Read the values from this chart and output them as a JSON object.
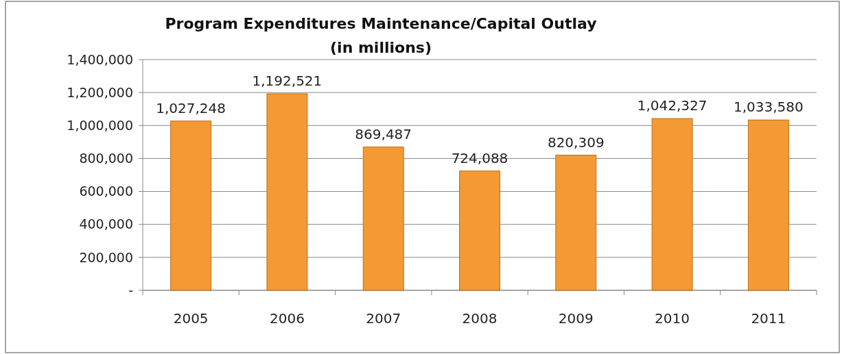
{
  "chart_data": {
    "type": "bar",
    "title": "Program Expenditures Maintenance/Capital Outlay",
    "subtitle": "(in millions)",
    "categories": [
      "2005",
      "2006",
      "2007",
      "2008",
      "2009",
      "2010",
      "2011"
    ],
    "values": [
      1027248,
      1192521,
      869487,
      724088,
      820309,
      1042327,
      1033580
    ],
    "color": "#f39a34",
    "ylim": [
      0,
      1400000
    ],
    "yticks": [
      {
        "value": 0,
        "label": "-"
      },
      {
        "value": 200000,
        "label": "200,000"
      },
      {
        "value": 400000,
        "label": "400,000"
      },
      {
        "value": 600000,
        "label": "600,000"
      },
      {
        "value": 800000,
        "label": "800,000"
      },
      {
        "value": 1000000,
        "label": "1,000,000"
      },
      {
        "value": 1200000,
        "label": "1,200,000"
      },
      {
        "value": 1400000,
        "label": "1,400,000"
      }
    ],
    "value_labels": [
      "1,027,248",
      "1,192,521",
      "869,487",
      "724,088",
      "820,309",
      "1,042,327",
      "1,033,580"
    ],
    "grid": "y"
  }
}
